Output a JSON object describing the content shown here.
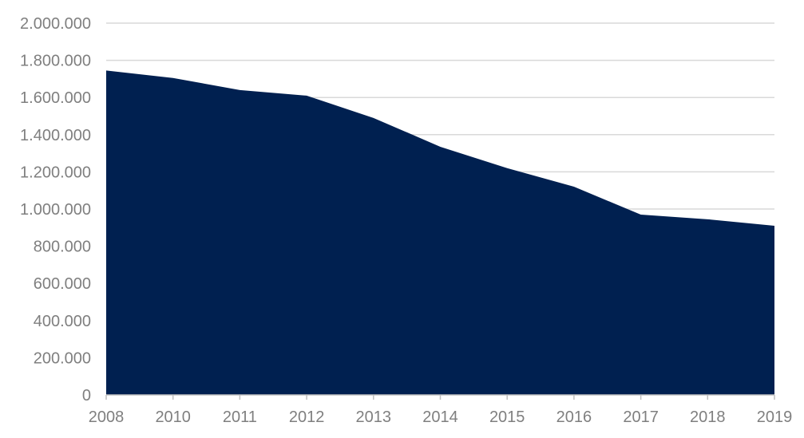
{
  "chart_data": {
    "type": "area",
    "title": "",
    "xlabel": "",
    "ylabel": "",
    "categories": [
      "2008",
      "2010",
      "2011",
      "2012",
      "2013",
      "2014",
      "2015",
      "2016",
      "2017",
      "2018",
      "2019"
    ],
    "values": [
      1745000,
      1705000,
      1640000,
      1610000,
      1490000,
      1335000,
      1220000,
      1120000,
      970000,
      945000,
      910000
    ],
    "ylim": [
      0,
      2000000
    ],
    "yticks": [
      0,
      200000,
      400000,
      600000,
      800000,
      1000000,
      1200000,
      1400000,
      1600000,
      1800000,
      2000000
    ],
    "ytick_labels": [
      "0",
      "200.000",
      "400.000",
      "600.000",
      "800.000",
      "1.000.000",
      "1.200.000",
      "1.400.000",
      "1.600.000",
      "1.800.000",
      "2.000.000"
    ],
    "grid": true,
    "legend": "none",
    "colors": {
      "fill": "#002050",
      "grid": "#d9d9d9",
      "axis": "#bfbfbf",
      "tick_text": "#7f7f7f"
    }
  }
}
